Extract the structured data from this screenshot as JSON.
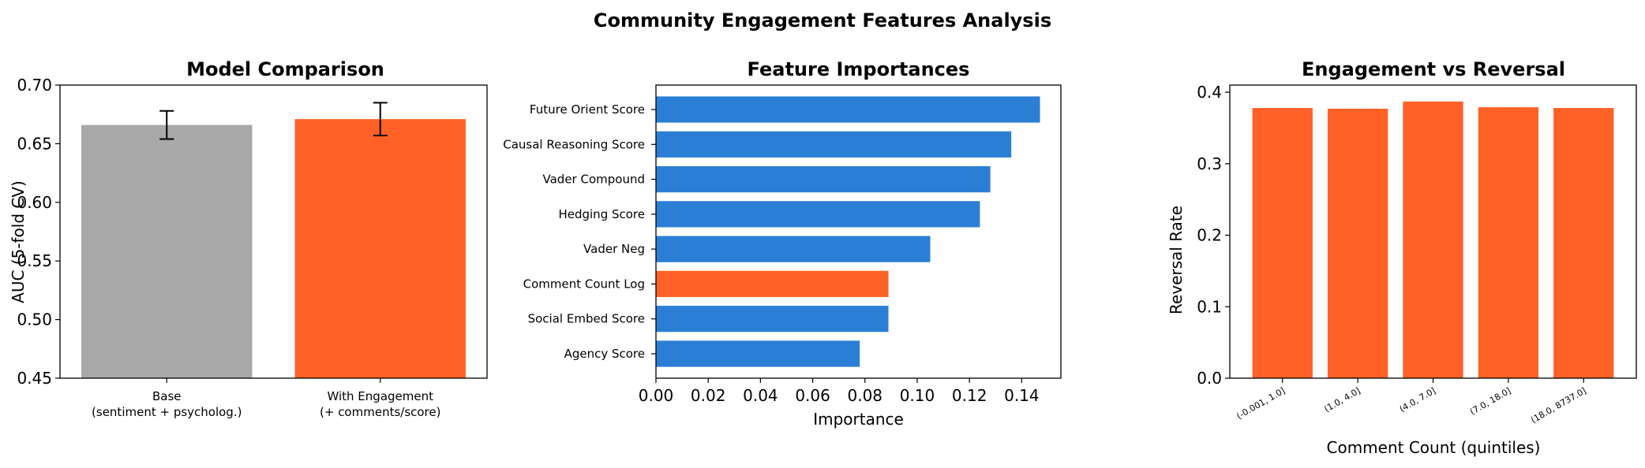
{
  "figure": {
    "title": "Community Engagement Features Analysis"
  },
  "colors": {
    "gray": "#a8a8a8",
    "orange": "#ff6127",
    "blue": "#2a7fd5"
  },
  "chart_data": [
    {
      "type": "bar",
      "title": "Model Comparison",
      "ylabel": "AUC (5-fold CV)",
      "xlabel": "",
      "ylim": [
        0.45,
        0.7
      ],
      "yticks": [
        0.45,
        0.5,
        0.55,
        0.6,
        0.65,
        0.7
      ],
      "ytick_labels": [
        "0.45",
        "0.50",
        "0.55",
        "0.60",
        "0.65",
        "0.70"
      ],
      "categories": [
        [
          "Base",
          "(sentiment + psycholog.)"
        ],
        [
          "With Engagement",
          "(+ comments/score)"
        ]
      ],
      "values": [
        0.666,
        0.671
      ],
      "errors": [
        0.012,
        0.014
      ],
      "bar_colors": [
        "#a8a8a8",
        "#ff6127"
      ],
      "grid": false
    },
    {
      "type": "bar",
      "orientation": "horizontal",
      "title": "Feature Importances",
      "xlabel": "Importance",
      "ylabel": "",
      "xlim": [
        0,
        0.155
      ],
      "xticks": [
        0,
        0.02,
        0.04,
        0.06,
        0.08,
        0.1,
        0.12,
        0.14
      ],
      "xtick_labels": [
        "0.00",
        "0.02",
        "0.04",
        "0.06",
        "0.08",
        "0.10",
        "0.12",
        "0.14"
      ],
      "categories": [
        "Future Orient Score",
        "Causal Reasoning Score",
        "Vader Compound",
        "Hedging Score",
        "Vader Neg",
        "Comment Count Log",
        "Social Embed Score",
        "Agency Score"
      ],
      "values": [
        0.147,
        0.136,
        0.128,
        0.124,
        0.105,
        0.089,
        0.089,
        0.078
      ],
      "bar_colors": [
        "#2a7fd5",
        "#2a7fd5",
        "#2a7fd5",
        "#2a7fd5",
        "#2a7fd5",
        "#ff6127",
        "#2a7fd5",
        "#2a7fd5"
      ],
      "grid": false
    },
    {
      "type": "bar",
      "title": "Engagement vs Reversal",
      "xlabel": "Comment Count (quintiles)",
      "ylabel": "Reversal Rate",
      "ylim": [
        0,
        0.41
      ],
      "yticks": [
        0,
        0.1,
        0.2,
        0.3,
        0.4
      ],
      "ytick_labels": [
        "0.0",
        "0.1",
        "0.2",
        "0.3",
        "0.4"
      ],
      "categories": [
        "(-0.001, 1.0]",
        "(1.0, 4.0]",
        "(4.0, 7.0]",
        "(7.0, 18.0]",
        "(18.0, 8737.0]"
      ],
      "values": [
        0.378,
        0.377,
        0.387,
        0.379,
        0.378
      ],
      "bar_colors": [
        "#ff6127",
        "#ff6127",
        "#ff6127",
        "#ff6127",
        "#ff6127"
      ],
      "grid": false
    }
  ]
}
